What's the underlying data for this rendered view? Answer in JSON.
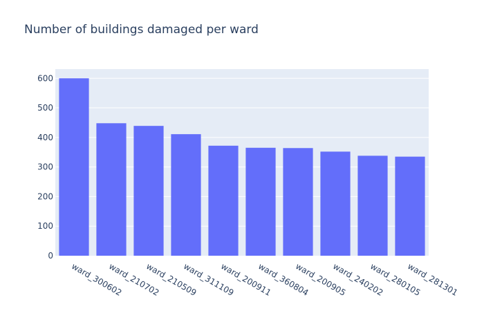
{
  "chart_data": {
    "type": "bar",
    "title": "Number of buildings damaged per ward",
    "xlabel": "",
    "ylabel": "",
    "categories": [
      "ward_300602",
      "ward_210702",
      "ward_210509",
      "ward_311109",
      "ward_200911",
      "ward_360804",
      "ward_200905",
      "ward_240202",
      "ward_280105",
      "ward_281301"
    ],
    "values": [
      600,
      448,
      439,
      411,
      372,
      365,
      364,
      352,
      338,
      335
    ],
    "ylim": [
      0,
      631
    ],
    "yticks": [
      0,
      100,
      200,
      300,
      400,
      500,
      600
    ],
    "grid": true,
    "legend": "none",
    "colors": {
      "bar": "#636efa",
      "plot_background": "#e5ecf6",
      "grid": "#ffffff",
      "text": "#2a3f5f"
    }
  }
}
